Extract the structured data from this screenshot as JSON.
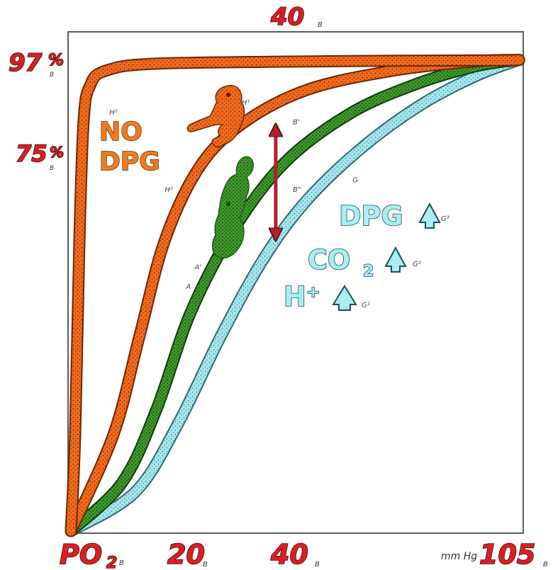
{
  "chart_data": {
    "type": "line",
    "x_axis": {
      "tick_labels": [
        {
          "text": "PO",
          "sub": "2",
          "mark": "B",
          "value": 0
        },
        {
          "text": "20",
          "mark": "B",
          "value": 20
        },
        {
          "text": "40",
          "mark": "B",
          "value": 40
        },
        {
          "text": "105",
          "mark": "B",
          "value": 105
        }
      ],
      "unit": "mm Hg",
      "top_label": {
        "text": "40",
        "mark": "B",
        "value": 40
      },
      "range": [
        0,
        105
      ]
    },
    "y_axis": {
      "tick_labels": [
        {
          "text": "97",
          "unit": "%",
          "mark": "B",
          "value": 97
        },
        {
          "text": "75",
          "unit": "%",
          "mark": "B",
          "value": 75
        }
      ],
      "range": [
        0,
        100
      ]
    },
    "series": [
      {
        "id": "h2",
        "color": "#f06a1c",
        "points": [
          [
            0,
            0
          ],
          [
            1,
            20
          ],
          [
            2,
            60
          ],
          [
            3,
            85
          ],
          [
            4.5,
            92
          ],
          [
            8,
            95
          ],
          [
            20,
            96.5
          ],
          [
            60,
            97
          ],
          [
            100,
            97.2
          ],
          [
            105,
            97.3
          ]
        ]
      },
      {
        "id": "h1",
        "color": "#f06a1c",
        "points": [
          [
            0,
            0
          ],
          [
            10,
            20
          ],
          [
            16,
            40
          ],
          [
            22,
            60
          ],
          [
            30,
            75
          ],
          [
            40,
            84
          ],
          [
            55,
            91
          ],
          [
            75,
            95
          ],
          [
            95,
            97
          ],
          [
            105,
            97.3
          ]
        ]
      },
      {
        "id": "a",
        "color": "#3f9a2a",
        "points": [
          [
            0,
            0
          ],
          [
            12,
            10
          ],
          [
            20,
            25
          ],
          [
            28,
            45
          ],
          [
            38,
            62
          ],
          [
            50,
            76
          ],
          [
            65,
            86
          ],
          [
            80,
            92
          ],
          [
            95,
            96
          ],
          [
            105,
            97.3
          ]
        ]
      },
      {
        "id": "g",
        "color": "#9fe3ea",
        "points": [
          [
            0,
            0
          ],
          [
            15,
            8
          ],
          [
            25,
            22
          ],
          [
            35,
            40
          ],
          [
            45,
            56
          ],
          [
            55,
            68
          ],
          [
            68,
            79
          ],
          [
            82,
            88
          ],
          [
            95,
            94
          ],
          [
            105,
            97.3
          ]
        ]
      }
    ],
    "curve_marks": [
      {
        "text": "H²",
        "x": 9,
        "y": 86
      },
      {
        "text": "H¹",
        "x": 40,
        "y": 88
      },
      {
        "text": "H²",
        "x": 22,
        "y": 70
      },
      {
        "text": "B'",
        "x": 52,
        "y": 84
      },
      {
        "text": "B\"",
        "x": 52,
        "y": 70
      },
      {
        "text": "G",
        "x": 66,
        "y": 72
      },
      {
        "text": "A'",
        "x": 29,
        "y": 54
      },
      {
        "text": "A",
        "x": 27,
        "y": 50
      }
    ],
    "annotations": {
      "no_dpg": {
        "line1": "NO",
        "line2": "DPG"
      },
      "factors": [
        {
          "text": "DPG",
          "sub": "",
          "mark": "G³"
        },
        {
          "text": "CO",
          "sub": "2",
          "mark": "G²"
        },
        {
          "text": "H⁺",
          "sub": "",
          "mark": "G¹"
        }
      ],
      "shift_arrow": {
        "x": 48,
        "from_y": 84,
        "to_y": 60,
        "color": "#b3202b"
      }
    }
  }
}
